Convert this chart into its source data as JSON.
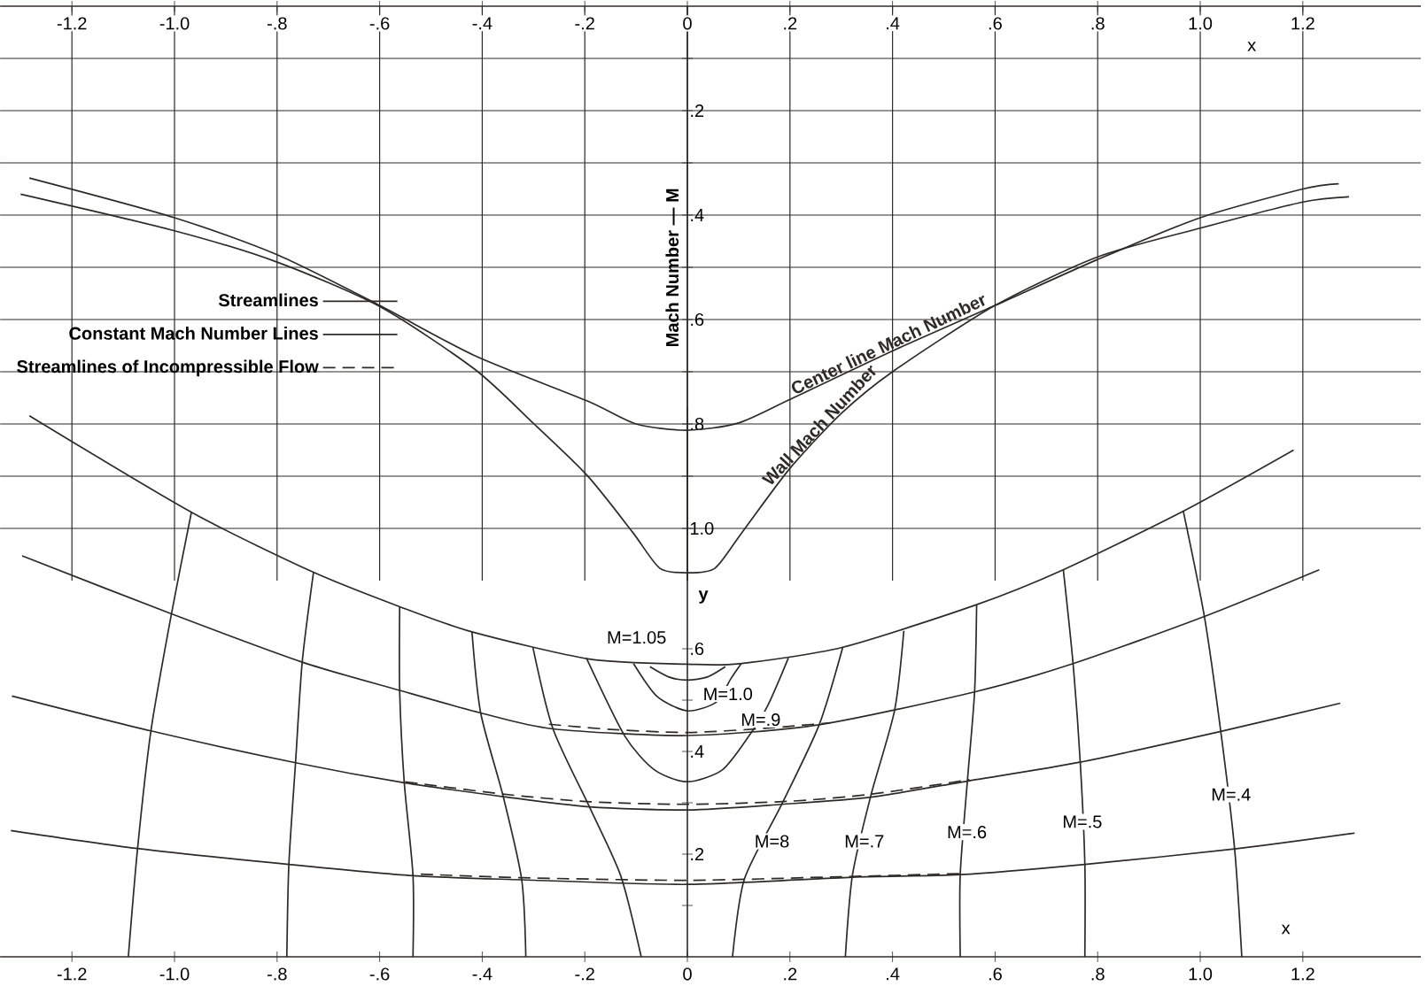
{
  "chart_data": [
    {
      "type": "line",
      "xlim": [
        -1.34,
        1.43
      ],
      "ylim": [
        1.1,
        0
      ],
      "xlabel": "x",
      "ylabel": "Mach Number — M",
      "grid": true,
      "marker": "none",
      "xticks": [
        {
          "value": -1.2,
          "label": "-1.2"
        },
        {
          "value": -1.0,
          "label": "-1.0"
        },
        {
          "value": -0.8,
          "label": "-.8"
        },
        {
          "value": -0.6,
          "label": "-.6"
        },
        {
          "value": -0.4,
          "label": "-.4"
        },
        {
          "value": -0.2,
          "label": "-.2"
        },
        {
          "value": 0,
          "label": "0"
        },
        {
          "value": 0.2,
          "label": ".2"
        },
        {
          "value": 0.4,
          "label": ".4"
        },
        {
          "value": 0.6,
          "label": ".6"
        },
        {
          "value": 0.8,
          "label": ".8"
        },
        {
          "value": 1.0,
          "label": "1.0"
        },
        {
          "value": 1.2,
          "label": "1.2"
        }
      ],
      "yticks": [
        {
          "value": 0.1,
          "label": null
        },
        {
          "value": 0.2,
          "label": ".2"
        },
        {
          "value": 0.3,
          "label": null
        },
        {
          "value": 0.4,
          "label": ".4"
        },
        {
          "value": 0.5,
          "label": null
        },
        {
          "value": 0.6,
          "label": ".6"
        },
        {
          "value": 0.7,
          "label": null
        },
        {
          "value": 0.8,
          "label": ".8"
        },
        {
          "value": 0.9,
          "label": null
        },
        {
          "value": 1.0,
          "label": "1.0"
        }
      ],
      "series": [
        {
          "name": "Center line Mach Number",
          "color": "#2e2a26",
          "x": [
            -1.283,
            -1.0,
            -0.8,
            -0.6,
            -0.415,
            -0.195,
            -0.1,
            0,
            0.1,
            0.2,
            0.4,
            0.6,
            0.8,
            1.0,
            1.2,
            1.27
          ],
          "values": [
            0.329,
            0.405,
            0.476,
            0.573,
            0.669,
            0.756,
            0.8,
            0.812,
            0.798,
            0.753,
            0.66,
            0.573,
            0.485,
            0.405,
            0.35,
            0.34
          ]
        },
        {
          "name": "Wall Mach Number",
          "color": "#2e2a26",
          "x": [
            -1.3,
            -1.0,
            -0.8,
            -0.6,
            -0.415,
            -0.3,
            -0.195,
            -0.107,
            -0.054,
            0,
            0.054,
            0.107,
            0.2,
            0.3,
            0.4,
            0.6,
            0.8,
            1.0,
            1.2,
            1.29
          ],
          "values": [
            0.36,
            0.43,
            0.49,
            0.575,
            0.695,
            0.799,
            0.899,
            1.007,
            1.076,
            1.085,
            1.076,
            1.007,
            0.885,
            0.78,
            0.7,
            0.573,
            0.48,
            0.425,
            0.375,
            0.365
          ]
        }
      ]
    },
    {
      "type": "line",
      "xlim": [
        -1.34,
        1.43
      ],
      "ylim": [
        0,
        1.07
      ],
      "xlabel": "x",
      "ylabel": "y",
      "legend": "top left",
      "marker": "none",
      "xticks": [
        {
          "value": -1.2,
          "label": "-1.2"
        },
        {
          "value": -1.0,
          "label": "-1.0"
        },
        {
          "value": -0.8,
          "label": "-.8"
        },
        {
          "value": -0.6,
          "label": "-.6"
        },
        {
          "value": -0.4,
          "label": "-.4"
        },
        {
          "value": -0.2,
          "label": "-.2"
        },
        {
          "value": 0,
          "label": "0"
        },
        {
          "value": 0.2,
          "label": ".2"
        },
        {
          "value": 0.4,
          "label": ".4"
        },
        {
          "value": 0.6,
          "label": ".6"
        },
        {
          "value": 0.8,
          "label": ".8"
        },
        {
          "value": 1.0,
          "label": "1.0"
        },
        {
          "value": 1.2,
          "label": "1.2"
        }
      ],
      "yticks": [
        {
          "value": 0.1,
          "label": null
        },
        {
          "value": 0.2,
          "label": ".2"
        },
        {
          "value": 0.3,
          "label": null
        },
        {
          "value": 0.4,
          "label": ".4"
        },
        {
          "value": 0.5,
          "label": null
        },
        {
          "value": 0.6,
          "label": ".6"
        }
      ],
      "annotations": [
        "M=1.05",
        "M=1.0",
        "M=.9",
        "M=8",
        "M=.7",
        "M=.6",
        "M=.5",
        "M=.4"
      ],
      "series": [
        {
          "name": "Streamlines",
          "color": "#2e2a26",
          "line_style": "solid",
          "x": [
            -1.283,
            -0.967,
            -0.729,
            -0.561,
            -0.42,
            -0.191,
            0,
            0.102,
            0.303,
            0.564,
            0.733,
            0.967,
            1.182
          ],
          "values": [
            1.054,
            0.866,
            0.749,
            0.682,
            0.633,
            0.58,
            0.57,
            0.571,
            0.603,
            0.686,
            0.754,
            0.868,
            0.987
          ]
        },
        {
          "name": "Constant Mach Number Lines",
          "color": "#2e2a26",
          "line_style": "solid",
          "x": [
            -0.967,
            -1.006,
            -1.046,
            -1.072,
            -1.09
          ],
          "values": [
            0.866,
            0.668,
            0.44,
            0.211,
            0
          ]
        },
        {
          "name": "Streamlines of Incompressible Flow",
          "color": "#2e2a26",
          "line_style": "dashed",
          "x": [
            -0.27,
            -0.15,
            0,
            0.15,
            0.28
          ],
          "values": [
            0.453,
            0.443,
            0.437,
            0.445,
            0.456
          ]
        },
        {
          "color": "#2e2a26",
          "line_style": "solid",
          "x": [
            -1.297,
            -1.006,
            -0.751,
            -0.561,
            -0.403,
            -0.262,
            0,
            0.257,
            0.56,
            0.752,
            1.008,
            1.232
          ],
          "values": [
            0.781,
            0.668,
            0.574,
            0.519,
            0.475,
            0.444,
            0.431,
            0.452,
            0.516,
            0.571,
            0.663,
            0.754
          ]
        },
        {
          "color": "#2e2a26",
          "line_style": "solid",
          "x": [
            -1.317,
            -1.046,
            -0.764,
            -0.552,
            -0.359,
            -0.191,
            0,
            0.184,
            0.358,
            0.55,
            0.765,
            1.04,
            1.273
          ],
          "values": [
            0.508,
            0.44,
            0.378,
            0.339,
            0.312,
            0.292,
            0.286,
            0.297,
            0.311,
            0.343,
            0.379,
            0.439,
            0.494
          ]
        },
        {
          "color": "#2e2a26",
          "line_style": "solid",
          "x": [
            -1.319,
            -1.072,
            -0.777,
            -0.535,
            -0.323,
            0,
            0.322,
            0.532,
            0.775,
            1.067,
            1.301
          ],
          "values": [
            0.246,
            0.211,
            0.18,
            0.158,
            0.15,
            0.141,
            0.155,
            0.16,
            0.18,
            0.21,
            0.241
          ]
        },
        {
          "color": "#2e2a26",
          "line_style": "dashed",
          "x": [
            -0.55,
            -0.36,
            -0.19,
            0,
            0.2,
            0.36,
            0.55
          ],
          "values": [
            0.341,
            0.317,
            0.302,
            0.297,
            0.303,
            0.317,
            0.345
          ]
        },
        {
          "color": "#2e2a26",
          "line_style": "dashed",
          "x": [
            -0.52,
            -0.32,
            0,
            0.3,
            0.53
          ],
          "values": [
            0.161,
            0.154,
            0.149,
            0.156,
            0.162
          ]
        },
        {
          "color": "#2e2a26",
          "line_style": "solid",
          "x": [
            -0.729,
            -0.751,
            -0.764,
            -0.777,
            -0.781
          ],
          "values": [
            0.749,
            0.574,
            0.378,
            0.18,
            0
          ]
        },
        {
          "color": "#2e2a26",
          "line_style": "solid",
          "x": [
            -0.561,
            -0.561,
            -0.552,
            -0.535,
            -0.535
          ],
          "values": [
            0.682,
            0.519,
            0.339,
            0.158,
            0
          ]
        },
        {
          "color": "#2e2a26",
          "line_style": "solid",
          "x": [
            -0.42,
            -0.403,
            -0.359,
            -0.323,
            -0.315
          ],
          "values": [
            0.633,
            0.475,
            0.312,
            0.15,
            0
          ]
        },
        {
          "color": "#2e2a26",
          "line_style": "solid",
          "x": [
            -0.301,
            -0.262,
            -0.191,
            -0.13,
            -0.09
          ],
          "values": [
            0.602,
            0.444,
            0.292,
            0.158,
            0
          ]
        },
        {
          "color": "#2e2a26",
          "line_style": "solid",
          "x": [
            -0.197,
            -0.122,
            -0.064,
            0,
            0.068,
            0.12,
            0.157,
            0.197
          ],
          "values": [
            0.582,
            0.43,
            0.364,
            0.341,
            0.364,
            0.43,
            0.49,
            0.582
          ]
        },
        {
          "color": "#2e2a26",
          "line_style": "solid",
          "x": [
            -0.105,
            -0.059,
            0,
            0.056,
            0.085,
            0.105
          ],
          "values": [
            0.571,
            0.507,
            0.479,
            0.496,
            0.542,
            0.571
          ]
        },
        {
          "color": "#2e2a26",
          "line_style": "solid",
          "x": [
            -0.073,
            -0.036,
            0,
            0.039,
            0.074
          ],
          "values": [
            0.565,
            0.545,
            0.539,
            0.545,
            0.565
          ]
        },
        {
          "color": "#2e2a26",
          "line_style": "solid",
          "x": [
            0.303,
            0.257,
            0.184,
            0.111,
            0.088
          ],
          "values": [
            0.603,
            0.452,
            0.297,
            0.151,
            0
          ]
        },
        {
          "color": "#2e2a26",
          "line_style": "solid",
          "x": [
            0.422,
            0.404,
            0.358,
            0.322,
            0.308
          ],
          "values": [
            0.635,
            0.48,
            0.315,
            0.16,
            0
          ]
        },
        {
          "color": "#2e2a26",
          "line_style": "solid",
          "x": [
            0.564,
            0.56,
            0.546,
            0.532,
            0.532
          ],
          "values": [
            0.686,
            0.516,
            0.343,
            0.16,
            0
          ]
        },
        {
          "color": "#2e2a26",
          "line_style": "solid",
          "x": [
            0.733,
            0.752,
            0.766,
            0.775,
            0.775
          ],
          "values": [
            0.754,
            0.571,
            0.379,
            0.18,
            0
          ]
        },
        {
          "color": "#2e2a26",
          "line_style": "solid",
          "x": [
            0.967,
            1.008,
            1.04,
            1.067,
            1.081
          ],
          "values": [
            0.868,
            0.663,
            0.439,
            0.21,
            0
          ]
        }
      ]
    }
  ]
}
